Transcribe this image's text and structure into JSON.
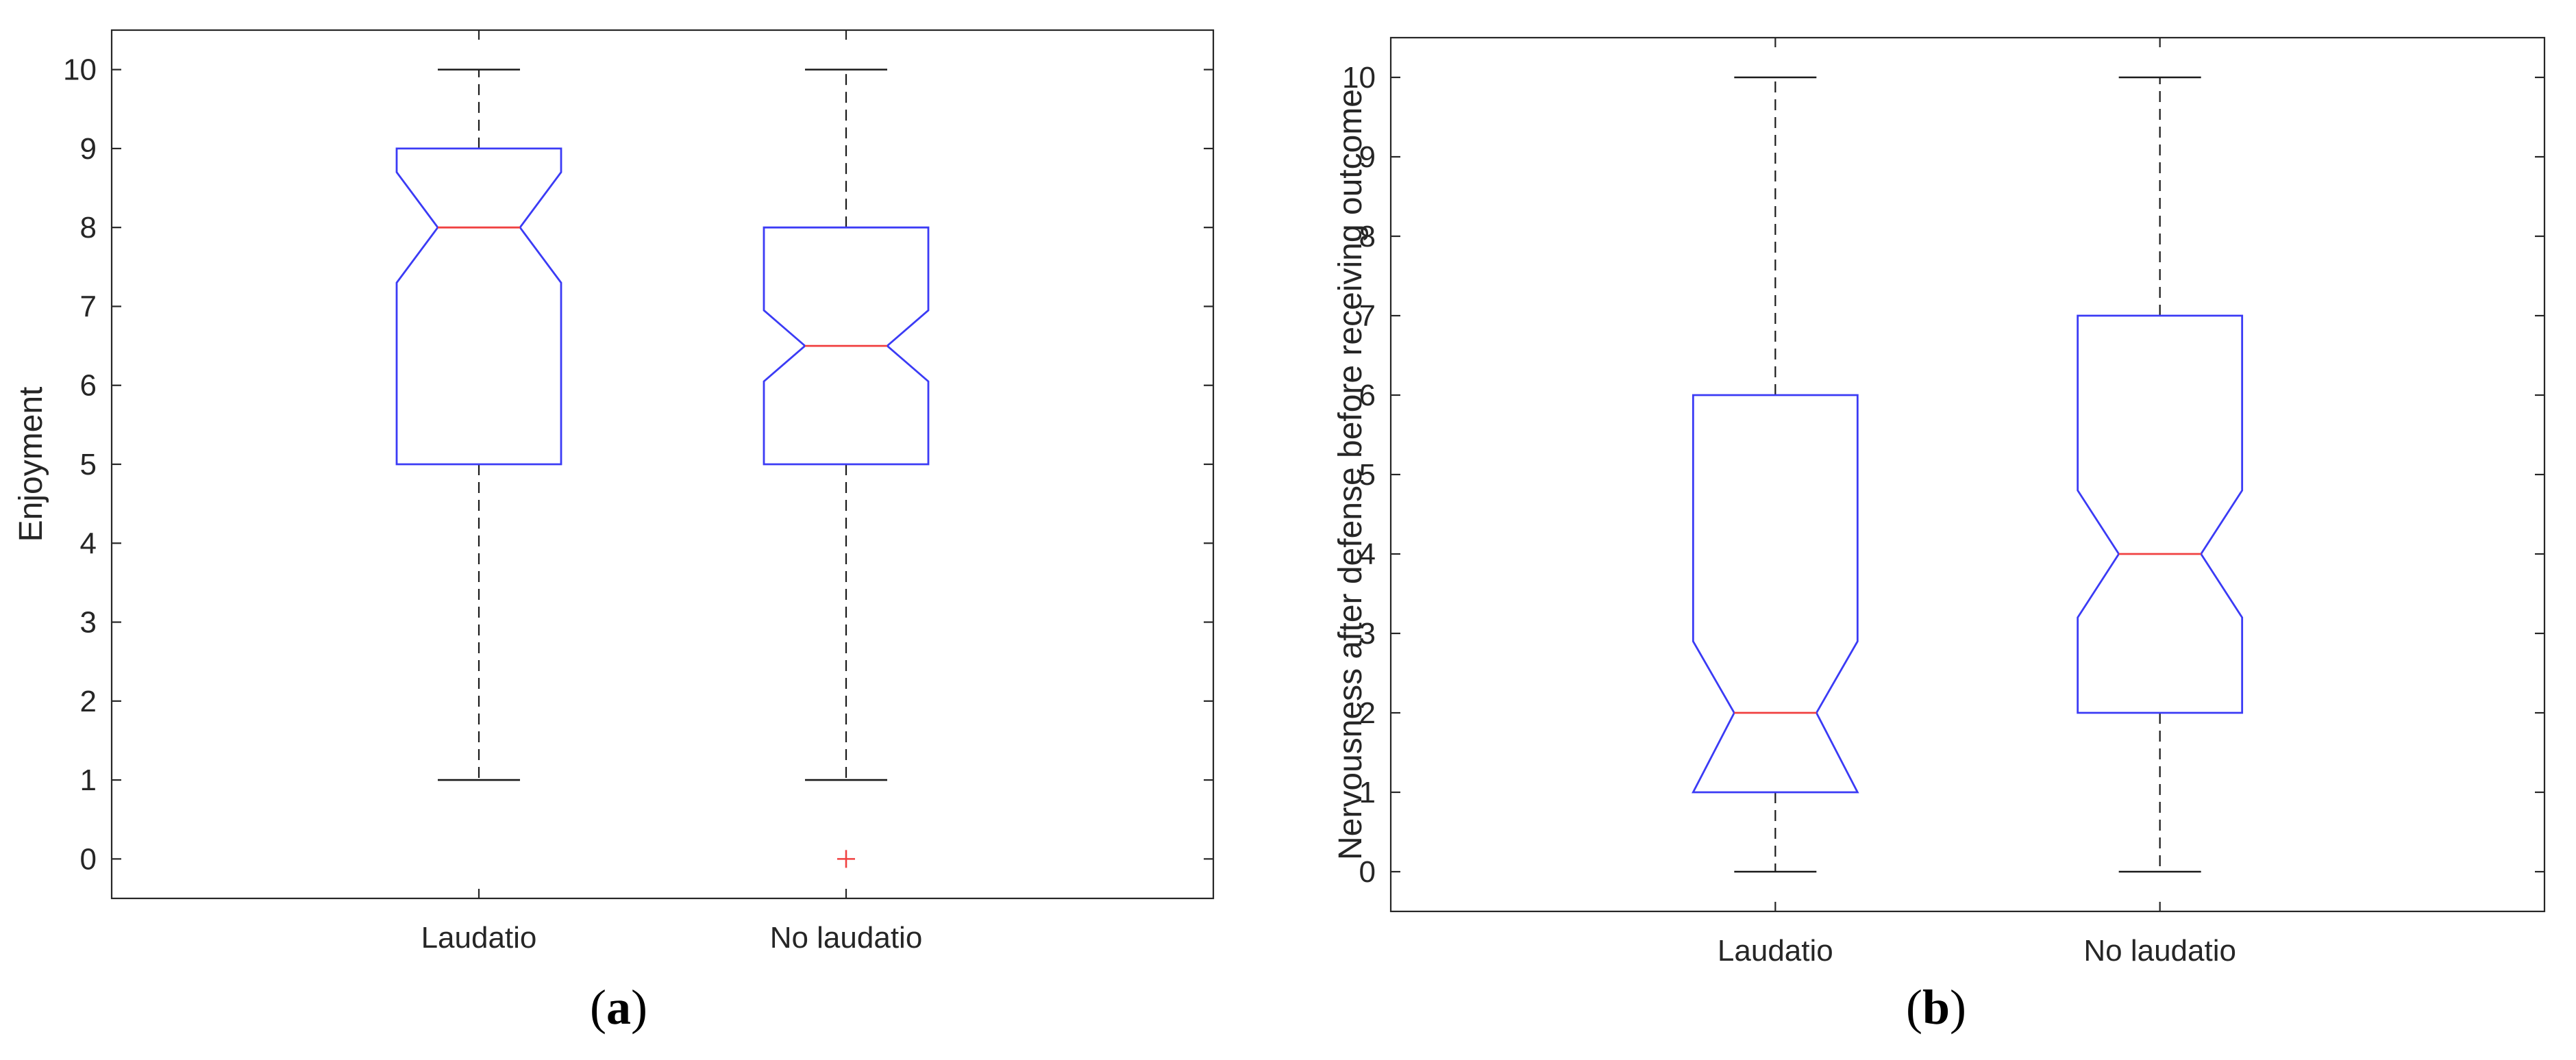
{
  "chart_data": [
    {
      "type": "boxplot",
      "panel_label": "a",
      "ylabel": "Enjoyment",
      "categories": [
        "Laudatio",
        "No laudatio"
      ],
      "ylim": [
        -0.5,
        10.5
      ],
      "yticks": [
        0,
        1,
        2,
        3,
        4,
        5,
        6,
        7,
        8,
        9,
        10
      ],
      "notched": true,
      "boxes": [
        {
          "category": "Laudatio",
          "whisker_low": 1,
          "q1": 5,
          "median": 8,
          "q3": 9,
          "whisker_high": 10,
          "notch_low": 7.3,
          "notch_high": 8.7,
          "outliers": []
        },
        {
          "category": "No laudatio",
          "whisker_low": 1,
          "q1": 5,
          "median": 6.5,
          "q3": 8,
          "whisker_high": 10,
          "notch_low": 6.05,
          "notch_high": 6.95,
          "outliers": [
            0
          ]
        }
      ]
    },
    {
      "type": "boxplot",
      "panel_label": "b",
      "ylabel": "Nervousness after defense before receiving outcome",
      "categories": [
        "Laudatio",
        "No laudatio"
      ],
      "ylim": [
        -0.5,
        10.5
      ],
      "yticks": [
        0,
        1,
        2,
        3,
        4,
        5,
        6,
        7,
        8,
        9,
        10
      ],
      "notched": true,
      "boxes": [
        {
          "category": "Laudatio",
          "whisker_low": 0,
          "q1": 1,
          "median": 2,
          "q3": 6,
          "whisker_high": 10,
          "notch_low": 1,
          "notch_high": 2.9,
          "outliers": []
        },
        {
          "category": "No laudatio",
          "whisker_low": 0,
          "q1": 2,
          "median": 4,
          "q3": 7,
          "whisker_high": 10,
          "notch_low": 3.2,
          "notch_high": 4.8,
          "outliers": []
        }
      ]
    }
  ],
  "colors": {
    "box": "#3b3bf5",
    "median": "#f04040",
    "whisker": "#1a1a1a",
    "axes": "#262626",
    "outlier": "#f04040"
  }
}
